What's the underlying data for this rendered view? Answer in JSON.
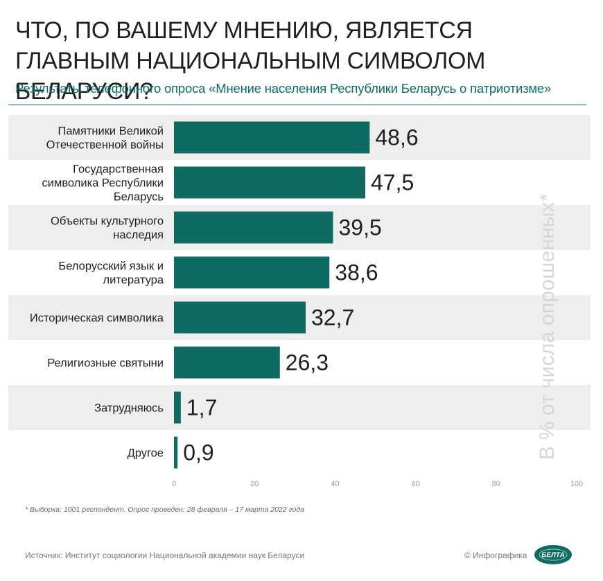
{
  "title": "Что, по вашему мнению, является главным национальным символом Беларуси?",
  "subtitle": "Результаты телефонного опроса «Мнение населения Республики Беларусь о патриотизме»",
  "axis_note": "В % от числа опрошенных*",
  "footnote": "* Выборка: 1001 респондент. Опрос проведен: 28 февраля – 17 марта 2022 года",
  "source": "Источник: Институт социологии Национальной академии наук Беларуси",
  "credit": "© Инфографика",
  "logo_text": "БЕЛТА",
  "colors": {
    "bar": "#0f6b62",
    "band": "#eeeeee",
    "accent": "#0f6b62"
  },
  "chart_data": {
    "type": "bar",
    "orientation": "horizontal",
    "categories": [
      "Памятники Великой Отечественной войны",
      "Государственная символика Республики Беларусь",
      "Объекты культурного наследия",
      "Белорусский язык и литература",
      "Историческая символика",
      "Религиозные святыни",
      "Затрудняюсь",
      "Другое"
    ],
    "category_lines": [
      [
        "Памятники Великой",
        "Отечественной войны"
      ],
      [
        "Государственная",
        "символика Республики",
        "Беларусь"
      ],
      [
        "Объекты культурного",
        "наследия"
      ],
      [
        "Белорусский язык и",
        "литература"
      ],
      [
        "Историческая символика"
      ],
      [
        "Религиозные святыни"
      ],
      [
        "Затрудняюсь"
      ],
      [
        "Другое"
      ]
    ],
    "values": [
      48.6,
      47.5,
      39.5,
      38.6,
      32.7,
      26.3,
      1.7,
      0.9
    ],
    "value_labels": [
      "48,6",
      "47,5",
      "39,5",
      "38,6",
      "32,7",
      "26,3",
      "1,7",
      "0,9"
    ],
    "xlim": [
      0,
      100
    ],
    "xticks": [
      0,
      20,
      40,
      60,
      80,
      100
    ],
    "grid": false,
    "legend": "none"
  }
}
